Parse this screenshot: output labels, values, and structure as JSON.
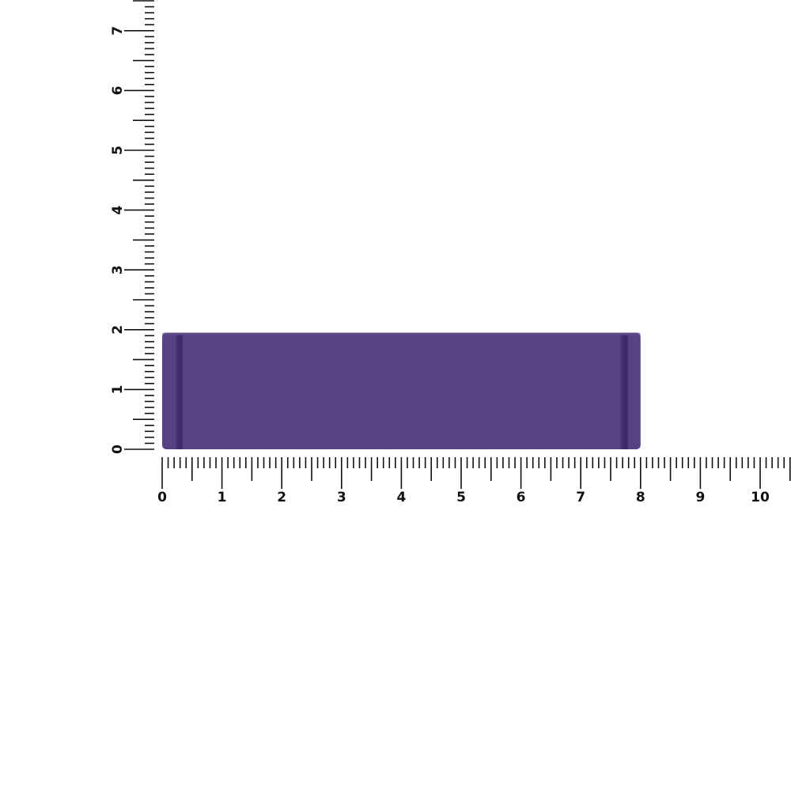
{
  "product": {
    "name_icon": "purple-rectangular-bar",
    "color": "#574283",
    "groove_color": "#3d2a66",
    "width_units": 8,
    "height_units": 1.95
  },
  "rulers": {
    "horizontal": {
      "labels": [
        "0",
        "1",
        "2",
        "3",
        "4",
        "5",
        "6",
        "7",
        "8",
        "9",
        "10"
      ]
    },
    "vertical": {
      "labels": [
        "0",
        "1",
        "2",
        "3",
        "4",
        "5",
        "6",
        "7"
      ]
    },
    "tick_color": "#111111"
  }
}
